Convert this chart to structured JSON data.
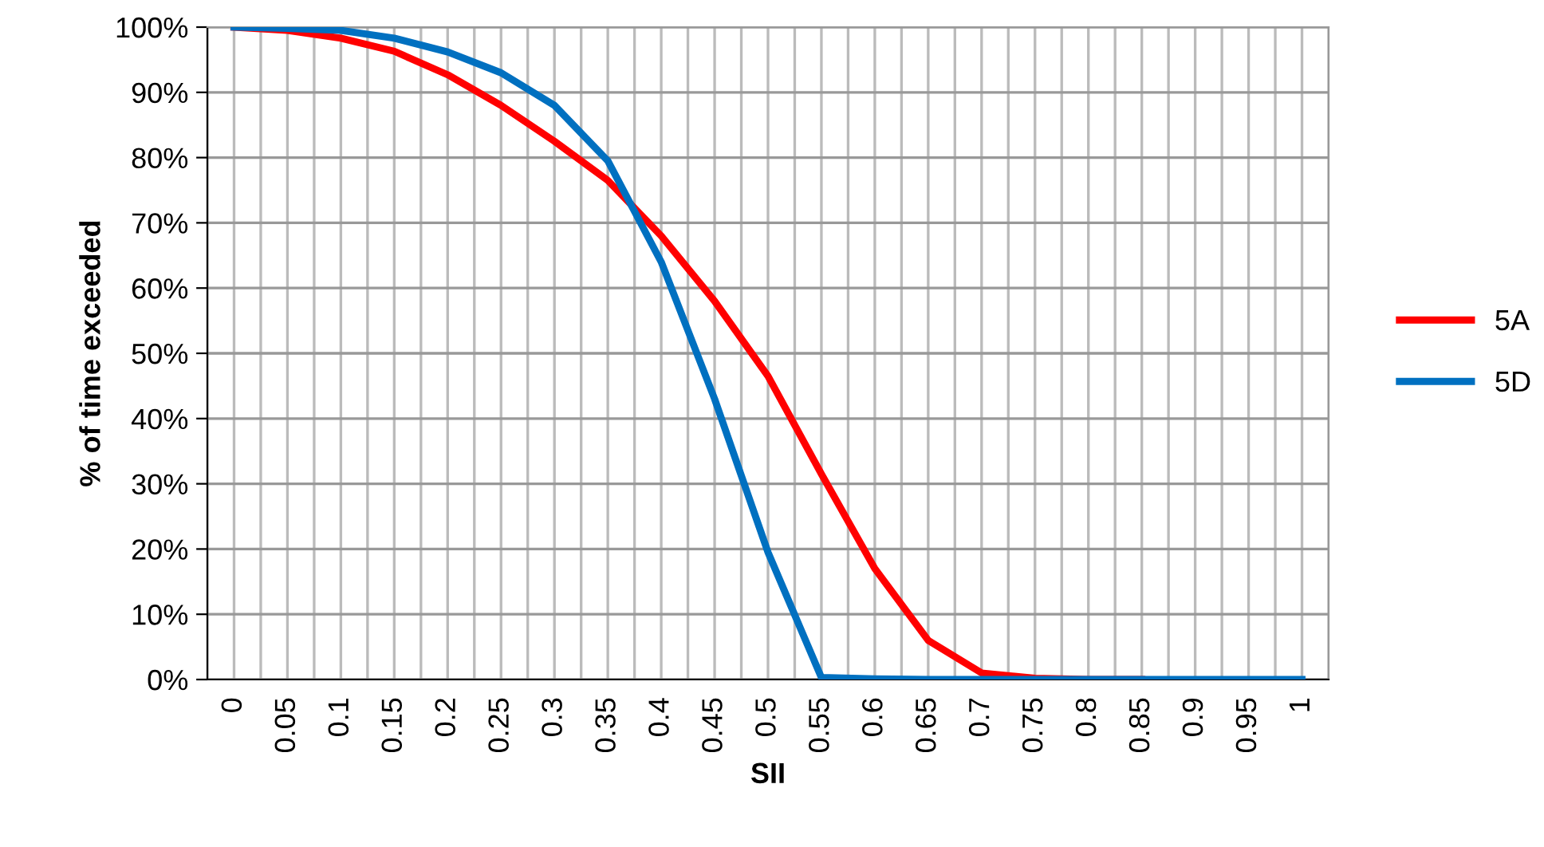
{
  "chart_data": {
    "type": "line",
    "xlabel": "SII",
    "ylabel": "% of time exceeded",
    "categories": [
      "0",
      "0.05",
      "0.1",
      "0.15",
      "0.2",
      "0.25",
      "0.3",
      "0.35",
      "0.4",
      "0.45",
      "0.5",
      "0.55",
      "0.6",
      "0.65",
      "0.7",
      "0.75",
      "0.8",
      "0.85",
      "0.9",
      "0.95",
      "1"
    ],
    "series": [
      {
        "name": "5A",
        "color": "#ff0000",
        "values": [
          100,
          99.5,
          98.3,
          96.3,
          92.7,
          88,
          82.5,
          76.5,
          68,
          58,
          46.5,
          31.5,
          17,
          6,
          1,
          0.2,
          0,
          0,
          null,
          null,
          null
        ]
      },
      {
        "name": "5D",
        "color": "#0070c0",
        "values": [
          100,
          99.8,
          99.5,
          98.3,
          96.2,
          93,
          88,
          79.5,
          64,
          43,
          19.5,
          0.3,
          0.1,
          0,
          0,
          0,
          0,
          0,
          0,
          0,
          0
        ]
      }
    ],
    "ylim": [
      0,
      100
    ],
    "yticks": [
      {
        "value": 0,
        "label": "0%"
      },
      {
        "value": 10,
        "label": "10%"
      },
      {
        "value": 20,
        "label": "20%"
      },
      {
        "value": 30,
        "label": "30%"
      },
      {
        "value": 40,
        "label": "40%"
      },
      {
        "value": 50,
        "label": "50%"
      },
      {
        "value": 60,
        "label": "60%"
      },
      {
        "value": 70,
        "label": "70%"
      },
      {
        "value": 80,
        "label": "80%"
      },
      {
        "value": 90,
        "label": "90%"
      },
      {
        "value": 100,
        "label": "100%"
      }
    ],
    "grid": true,
    "legend": "right",
    "marker": "none",
    "line_style": "solid"
  }
}
